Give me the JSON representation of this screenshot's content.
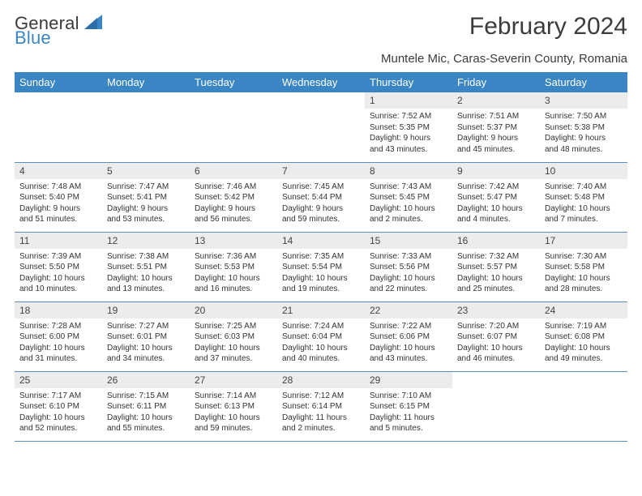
{
  "logo": {
    "word1": "General",
    "word2": "Blue"
  },
  "title": "February 2024",
  "location": "Muntele Mic, Caras-Severin County, Romania",
  "colors": {
    "header_bg": "#3a86c4",
    "header_fg": "#ffffff",
    "daynum_bg": "#ececec",
    "rule": "#5c8fbd"
  },
  "day_headers": [
    "Sunday",
    "Monday",
    "Tuesday",
    "Wednesday",
    "Thursday",
    "Friday",
    "Saturday"
  ],
  "weeks": [
    [
      {
        "n": ""
      },
      {
        "n": ""
      },
      {
        "n": ""
      },
      {
        "n": ""
      },
      {
        "n": "1",
        "sr": "Sunrise: 7:52 AM",
        "ss": "Sunset: 5:35 PM",
        "d1": "Daylight: 9 hours",
        "d2": "and 43 minutes."
      },
      {
        "n": "2",
        "sr": "Sunrise: 7:51 AM",
        "ss": "Sunset: 5:37 PM",
        "d1": "Daylight: 9 hours",
        "d2": "and 45 minutes."
      },
      {
        "n": "3",
        "sr": "Sunrise: 7:50 AM",
        "ss": "Sunset: 5:38 PM",
        "d1": "Daylight: 9 hours",
        "d2": "and 48 minutes."
      }
    ],
    [
      {
        "n": "4",
        "sr": "Sunrise: 7:48 AM",
        "ss": "Sunset: 5:40 PM",
        "d1": "Daylight: 9 hours",
        "d2": "and 51 minutes."
      },
      {
        "n": "5",
        "sr": "Sunrise: 7:47 AM",
        "ss": "Sunset: 5:41 PM",
        "d1": "Daylight: 9 hours",
        "d2": "and 53 minutes."
      },
      {
        "n": "6",
        "sr": "Sunrise: 7:46 AM",
        "ss": "Sunset: 5:42 PM",
        "d1": "Daylight: 9 hours",
        "d2": "and 56 minutes."
      },
      {
        "n": "7",
        "sr": "Sunrise: 7:45 AM",
        "ss": "Sunset: 5:44 PM",
        "d1": "Daylight: 9 hours",
        "d2": "and 59 minutes."
      },
      {
        "n": "8",
        "sr": "Sunrise: 7:43 AM",
        "ss": "Sunset: 5:45 PM",
        "d1": "Daylight: 10 hours",
        "d2": "and 2 minutes."
      },
      {
        "n": "9",
        "sr": "Sunrise: 7:42 AM",
        "ss": "Sunset: 5:47 PM",
        "d1": "Daylight: 10 hours",
        "d2": "and 4 minutes."
      },
      {
        "n": "10",
        "sr": "Sunrise: 7:40 AM",
        "ss": "Sunset: 5:48 PM",
        "d1": "Daylight: 10 hours",
        "d2": "and 7 minutes."
      }
    ],
    [
      {
        "n": "11",
        "sr": "Sunrise: 7:39 AM",
        "ss": "Sunset: 5:50 PM",
        "d1": "Daylight: 10 hours",
        "d2": "and 10 minutes."
      },
      {
        "n": "12",
        "sr": "Sunrise: 7:38 AM",
        "ss": "Sunset: 5:51 PM",
        "d1": "Daylight: 10 hours",
        "d2": "and 13 minutes."
      },
      {
        "n": "13",
        "sr": "Sunrise: 7:36 AM",
        "ss": "Sunset: 5:53 PM",
        "d1": "Daylight: 10 hours",
        "d2": "and 16 minutes."
      },
      {
        "n": "14",
        "sr": "Sunrise: 7:35 AM",
        "ss": "Sunset: 5:54 PM",
        "d1": "Daylight: 10 hours",
        "d2": "and 19 minutes."
      },
      {
        "n": "15",
        "sr": "Sunrise: 7:33 AM",
        "ss": "Sunset: 5:56 PM",
        "d1": "Daylight: 10 hours",
        "d2": "and 22 minutes."
      },
      {
        "n": "16",
        "sr": "Sunrise: 7:32 AM",
        "ss": "Sunset: 5:57 PM",
        "d1": "Daylight: 10 hours",
        "d2": "and 25 minutes."
      },
      {
        "n": "17",
        "sr": "Sunrise: 7:30 AM",
        "ss": "Sunset: 5:58 PM",
        "d1": "Daylight: 10 hours",
        "d2": "and 28 minutes."
      }
    ],
    [
      {
        "n": "18",
        "sr": "Sunrise: 7:28 AM",
        "ss": "Sunset: 6:00 PM",
        "d1": "Daylight: 10 hours",
        "d2": "and 31 minutes."
      },
      {
        "n": "19",
        "sr": "Sunrise: 7:27 AM",
        "ss": "Sunset: 6:01 PM",
        "d1": "Daylight: 10 hours",
        "d2": "and 34 minutes."
      },
      {
        "n": "20",
        "sr": "Sunrise: 7:25 AM",
        "ss": "Sunset: 6:03 PM",
        "d1": "Daylight: 10 hours",
        "d2": "and 37 minutes."
      },
      {
        "n": "21",
        "sr": "Sunrise: 7:24 AM",
        "ss": "Sunset: 6:04 PM",
        "d1": "Daylight: 10 hours",
        "d2": "and 40 minutes."
      },
      {
        "n": "22",
        "sr": "Sunrise: 7:22 AM",
        "ss": "Sunset: 6:06 PM",
        "d1": "Daylight: 10 hours",
        "d2": "and 43 minutes."
      },
      {
        "n": "23",
        "sr": "Sunrise: 7:20 AM",
        "ss": "Sunset: 6:07 PM",
        "d1": "Daylight: 10 hours",
        "d2": "and 46 minutes."
      },
      {
        "n": "24",
        "sr": "Sunrise: 7:19 AM",
        "ss": "Sunset: 6:08 PM",
        "d1": "Daylight: 10 hours",
        "d2": "and 49 minutes."
      }
    ],
    [
      {
        "n": "25",
        "sr": "Sunrise: 7:17 AM",
        "ss": "Sunset: 6:10 PM",
        "d1": "Daylight: 10 hours",
        "d2": "and 52 minutes."
      },
      {
        "n": "26",
        "sr": "Sunrise: 7:15 AM",
        "ss": "Sunset: 6:11 PM",
        "d1": "Daylight: 10 hours",
        "d2": "and 55 minutes."
      },
      {
        "n": "27",
        "sr": "Sunrise: 7:14 AM",
        "ss": "Sunset: 6:13 PM",
        "d1": "Daylight: 10 hours",
        "d2": "and 59 minutes."
      },
      {
        "n": "28",
        "sr": "Sunrise: 7:12 AM",
        "ss": "Sunset: 6:14 PM",
        "d1": "Daylight: 11 hours",
        "d2": "and 2 minutes."
      },
      {
        "n": "29",
        "sr": "Sunrise: 7:10 AM",
        "ss": "Sunset: 6:15 PM",
        "d1": "Daylight: 11 hours",
        "d2": "and 5 minutes."
      },
      {
        "n": ""
      },
      {
        "n": ""
      }
    ]
  ]
}
